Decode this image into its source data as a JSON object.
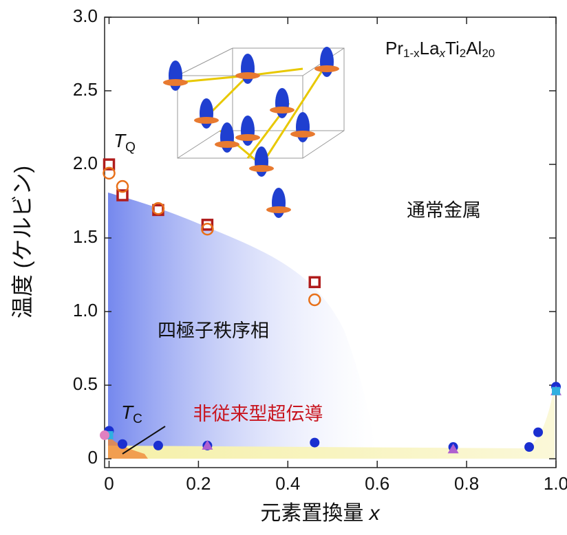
{
  "chart_data": {
    "type": "scatter",
    "x_label": "元素置換量",
    "x_label_var": "x",
    "y_label": "温度 (ケルビン)",
    "xlim": [
      -0.01,
      1.0
    ],
    "ylim": [
      -0.06,
      3.0
    ],
    "xticks": [
      0,
      0.2,
      0.4,
      0.6,
      0.8,
      {
        "value": 1,
        "label": "1.0"
      }
    ],
    "yticks": [
      0,
      0.5,
      {
        "value": 1,
        "label": "1.0"
      },
      1.5,
      {
        "value": 2,
        "label": "2.0"
      },
      2.5,
      {
        "value": 3,
        "label": "3.0"
      }
    ],
    "formula_parts": [
      "Pr",
      "1-x",
      "La",
      "x",
      "Ti",
      "2",
      "Al",
      "20"
    ],
    "tq_label": {
      "main": "T",
      "sub": "Q"
    },
    "tc_label": {
      "main": "T",
      "sub": "C"
    },
    "region_labels": [
      "通常金属",
      "四極子秩序相",
      "非従来型超伝導"
    ],
    "series": [
      {
        "marker": "square-open",
        "color": "#b01c1c",
        "x": [
          0,
          0.03,
          0.11,
          0.22,
          0.46
        ],
        "values": [
          2.0,
          1.79,
          1.69,
          1.59,
          1.2
        ]
      },
      {
        "marker": "circle-open",
        "color": "#e8701a",
        "x": [
          0,
          0.03,
          0.11,
          0.22,
          0.46
        ],
        "values": [
          1.94,
          1.85,
          1.7,
          1.56,
          1.08
        ]
      },
      {
        "marker": "circle",
        "color": "#1a2fd0",
        "x": [
          0,
          0.03,
          0.11,
          0.22,
          0.46,
          0.77,
          0.94,
          0.96,
          1.0
        ],
        "values": [
          0.19,
          0.1,
          0.09,
          0.09,
          0.11,
          0.08,
          0.08,
          0.18,
          0.49
        ]
      },
      {
        "marker": "triangle",
        "color": "#b060d0",
        "x": [
          0.22,
          0.77,
          1.0
        ],
        "values": [
          0.09,
          0.065,
          0.46
        ]
      },
      {
        "marker": "square",
        "color": "#30b0e0",
        "x": [
          0,
          1.0
        ],
        "values": [
          0.16,
          0.46
        ]
      },
      {
        "marker": "circle",
        "color": "#e080c0",
        "x": [
          -0.01
        ],
        "values": [
          0.16
        ]
      }
    ]
  }
}
